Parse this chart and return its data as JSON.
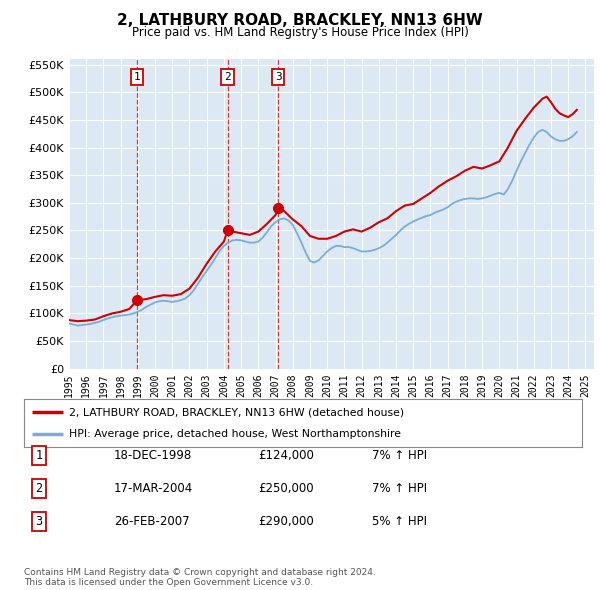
{
  "title": "2, LATHBURY ROAD, BRACKLEY, NN13 6HW",
  "subtitle": "Price paid vs. HM Land Registry's House Price Index (HPI)",
  "legend_label_red": "2, LATHBURY ROAD, BRACKLEY, NN13 6HW (detached house)",
  "legend_label_blue": "HPI: Average price, detached house, West Northamptonshire",
  "footer": "Contains HM Land Registry data © Crown copyright and database right 2024.\nThis data is licensed under the Open Government Licence v3.0.",
  "ylim": [
    0,
    560000
  ],
  "yticks": [
    0,
    50000,
    100000,
    150000,
    200000,
    250000,
    300000,
    350000,
    400000,
    450000,
    500000,
    550000
  ],
  "xlim_start": 1995.0,
  "xlim_end": 2025.5,
  "background_color": "#dce9f5",
  "red_color": "#cc0000",
  "blue_color": "#7aadd4",
  "sale_events": [
    {
      "num": 1,
      "year": 1998.96,
      "price": 124000,
      "date": "18-DEC-1998",
      "pct": "7%",
      "dir": "↑"
    },
    {
      "num": 2,
      "year": 2004.21,
      "price": 250000,
      "date": "17-MAR-2004",
      "pct": "7%",
      "dir": "↑"
    },
    {
      "num": 3,
      "year": 2007.15,
      "price": 290000,
      "date": "26-FEB-2007",
      "pct": "5%",
      "dir": "↑"
    }
  ],
  "hpi_data": {
    "years": [
      1995.0,
      1995.25,
      1995.5,
      1995.75,
      1996.0,
      1996.25,
      1996.5,
      1996.75,
      1997.0,
      1997.25,
      1997.5,
      1997.75,
      1998.0,
      1998.25,
      1998.5,
      1998.75,
      1999.0,
      1999.25,
      1999.5,
      1999.75,
      2000.0,
      2000.25,
      2000.5,
      2000.75,
      2001.0,
      2001.25,
      2001.5,
      2001.75,
      2002.0,
      2002.25,
      2002.5,
      2002.75,
      2003.0,
      2003.25,
      2003.5,
      2003.75,
      2004.0,
      2004.25,
      2004.5,
      2004.75,
      2005.0,
      2005.25,
      2005.5,
      2005.75,
      2006.0,
      2006.25,
      2006.5,
      2006.75,
      2007.0,
      2007.25,
      2007.5,
      2007.75,
      2008.0,
      2008.25,
      2008.5,
      2008.75,
      2009.0,
      2009.25,
      2009.5,
      2009.75,
      2010.0,
      2010.25,
      2010.5,
      2010.75,
      2011.0,
      2011.25,
      2011.5,
      2011.75,
      2012.0,
      2012.25,
      2012.5,
      2012.75,
      2013.0,
      2013.25,
      2013.5,
      2013.75,
      2014.0,
      2014.25,
      2014.5,
      2014.75,
      2015.0,
      2015.25,
      2015.5,
      2015.75,
      2016.0,
      2016.25,
      2016.5,
      2016.75,
      2017.0,
      2017.25,
      2017.5,
      2017.75,
      2018.0,
      2018.25,
      2018.5,
      2018.75,
      2019.0,
      2019.25,
      2019.5,
      2019.75,
      2020.0,
      2020.25,
      2020.5,
      2020.75,
      2021.0,
      2021.25,
      2021.5,
      2021.75,
      2022.0,
      2022.25,
      2022.5,
      2022.75,
      2023.0,
      2023.25,
      2023.5,
      2023.75,
      2024.0,
      2024.25,
      2024.5
    ],
    "values": [
      82000,
      80000,
      78000,
      79000,
      80000,
      81000,
      83000,
      85000,
      88000,
      91000,
      93000,
      95000,
      96000,
      97000,
      98000,
      100000,
      103000,
      107000,
      112000,
      116000,
      120000,
      122000,
      123000,
      122000,
      121000,
      122000,
      124000,
      127000,
      133000,
      142000,
      154000,
      166000,
      177000,
      188000,
      200000,
      213000,
      222000,
      228000,
      232000,
      233000,
      232000,
      230000,
      228000,
      228000,
      230000,
      237000,
      247000,
      258000,
      265000,
      270000,
      272000,
      268000,
      260000,
      245000,
      228000,
      210000,
      195000,
      192000,
      196000,
      204000,
      212000,
      218000,
      222000,
      222000,
      220000,
      220000,
      218000,
      215000,
      212000,
      212000,
      213000,
      215000,
      218000,
      222000,
      228000,
      235000,
      242000,
      250000,
      257000,
      262000,
      266000,
      270000,
      273000,
      276000,
      278000,
      282000,
      285000,
      288000,
      292000,
      298000,
      302000,
      305000,
      307000,
      308000,
      308000,
      307000,
      308000,
      310000,
      313000,
      316000,
      318000,
      315000,
      325000,
      340000,
      358000,
      375000,
      390000,
      405000,
      418000,
      428000,
      432000,
      428000,
      420000,
      415000,
      412000,
      412000,
      415000,
      420000,
      428000
    ]
  },
  "price_paid_data": {
    "years": [
      1995.0,
      1995.5,
      1996.0,
      1996.5,
      1997.0,
      1997.5,
      1998.0,
      1998.5,
      1998.96,
      1999.5,
      2000.0,
      2000.5,
      2001.0,
      2001.5,
      2002.0,
      2002.5,
      2003.0,
      2003.5,
      2004.0,
      2004.21,
      2004.5,
      2005.0,
      2005.5,
      2006.0,
      2006.5,
      2007.0,
      2007.15,
      2007.5,
      2008.0,
      2008.5,
      2009.0,
      2009.5,
      2010.0,
      2010.5,
      2011.0,
      2011.5,
      2012.0,
      2012.5,
      2013.0,
      2013.5,
      2014.0,
      2014.5,
      2015.0,
      2015.5,
      2016.0,
      2016.5,
      2017.0,
      2017.5,
      2018.0,
      2018.5,
      2019.0,
      2019.5,
      2020.0,
      2020.5,
      2021.0,
      2021.5,
      2022.0,
      2022.5,
      2022.75,
      2023.0,
      2023.25,
      2023.5,
      2023.75,
      2024.0,
      2024.25,
      2024.5
    ],
    "values": [
      88000,
      86000,
      87000,
      89000,
      95000,
      100000,
      103000,
      108000,
      124000,
      126000,
      130000,
      133000,
      132000,
      135000,
      145000,
      165000,
      190000,
      212000,
      230000,
      250000,
      248000,
      245000,
      242000,
      248000,
      262000,
      278000,
      290000,
      285000,
      270000,
      258000,
      240000,
      235000,
      235000,
      240000,
      248000,
      252000,
      248000,
      255000,
      265000,
      272000,
      285000,
      295000,
      298000,
      308000,
      318000,
      330000,
      340000,
      348000,
      358000,
      365000,
      362000,
      368000,
      375000,
      400000,
      430000,
      452000,
      472000,
      488000,
      492000,
      482000,
      470000,
      462000,
      458000,
      455000,
      460000,
      468000
    ]
  }
}
